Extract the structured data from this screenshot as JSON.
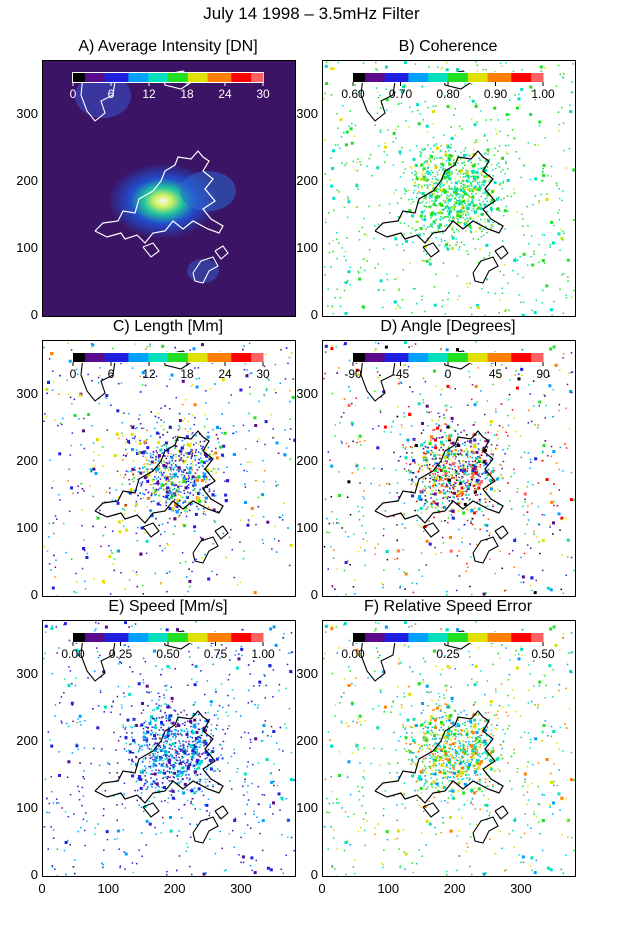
{
  "title": "July 14 1998 – 3.5mHz Filter",
  "chart_data": [
    {
      "type": "heatmap",
      "title": "A) Average Intensity [DN]",
      "colorbar": {
        "ticks": [
          "0",
          "6",
          "12",
          "18",
          "24",
          "30"
        ],
        "range": [
          0,
          30
        ]
      },
      "xlim": [
        0,
        380
      ],
      "ylim": [
        0,
        380
      ],
      "xticks": [
        "0",
        "100",
        "200",
        "300"
      ],
      "yticks": [
        "0",
        "100",
        "200",
        "300"
      ],
      "background": "#3b1466"
    },
    {
      "type": "heatmap",
      "title": "B) Coherence",
      "colorbar": {
        "ticks": [
          "0.60",
          "0.70",
          "0.80",
          "0.90",
          "1.00"
        ],
        "range": [
          0.6,
          1.0
        ]
      },
      "xlim": [
        0,
        380
      ],
      "ylim": [
        0,
        380
      ],
      "xticks": [
        "0",
        "100",
        "200",
        "300"
      ],
      "yticks": [
        "0",
        "100",
        "200",
        "300"
      ],
      "background": "#ffffff"
    },
    {
      "type": "heatmap",
      "title": "C) Length [Mm]",
      "colorbar": {
        "ticks": [
          "0",
          "6",
          "12",
          "18",
          "24",
          "30"
        ],
        "range": [
          0,
          30
        ]
      },
      "xlim": [
        0,
        380
      ],
      "ylim": [
        0,
        380
      ],
      "xticks": [
        "0",
        "100",
        "200",
        "300"
      ],
      "yticks": [
        "0",
        "100",
        "200",
        "300"
      ],
      "background": "#ffffff"
    },
    {
      "type": "heatmap",
      "title": "D) Angle [Degrees]",
      "colorbar": {
        "ticks": [
          "-90",
          "-45",
          "0",
          "45",
          "90"
        ],
        "range": [
          -90,
          90
        ]
      },
      "xlim": [
        0,
        380
      ],
      "ylim": [
        0,
        380
      ],
      "xticks": [
        "0",
        "100",
        "200",
        "300"
      ],
      "yticks": [
        "0",
        "100",
        "200",
        "300"
      ],
      "background": "#ffffff"
    },
    {
      "type": "heatmap",
      "title": "E) Speed [Mm/s]",
      "colorbar": {
        "ticks": [
          "0.00",
          "0.25",
          "0.50",
          "0.75",
          "1.00"
        ],
        "range": [
          0,
          1
        ]
      },
      "xlim": [
        0,
        380
      ],
      "ylim": [
        0,
        380
      ],
      "xticks": [
        "0",
        "100",
        "200",
        "300"
      ],
      "yticks": [
        "0",
        "100",
        "200",
        "300"
      ],
      "background": "#ffffff"
    },
    {
      "type": "heatmap",
      "title": "F) Relative Speed Error",
      "colorbar": {
        "ticks": [
          "0.00",
          "0.25",
          "0.50"
        ],
        "range": [
          0,
          0.5
        ]
      },
      "xlim": [
        0,
        380
      ],
      "ylim": [
        0,
        380
      ],
      "xticks": [
        "0",
        "100",
        "200",
        "300"
      ],
      "yticks": [
        "0",
        "100",
        "200",
        "300"
      ],
      "background": "#ffffff"
    }
  ],
  "colormap": [
    "#000000",
    "#5a0a8c",
    "#2020e0",
    "#00a0ff",
    "#00e0c0",
    "#20e020",
    "#e0e000",
    "#ff8000",
    "#ff0000",
    "#ff6060"
  ]
}
